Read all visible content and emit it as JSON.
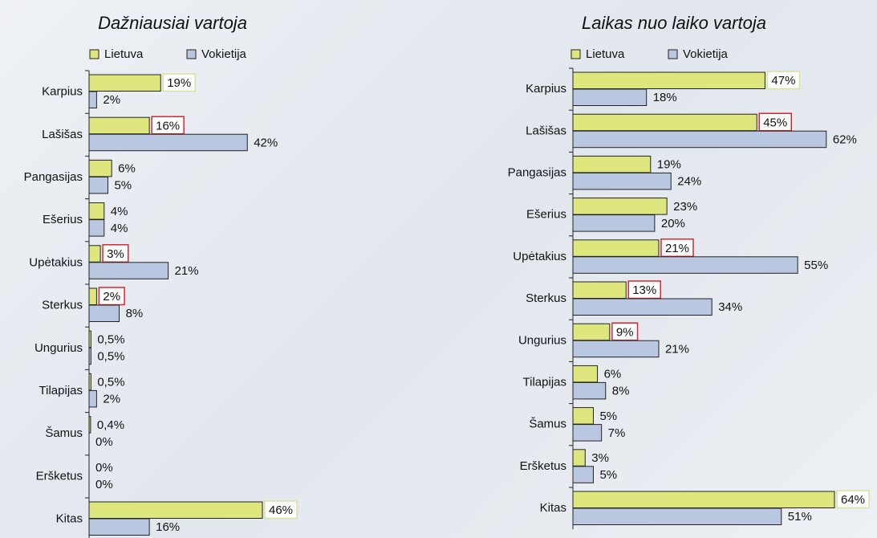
{
  "chart_data": [
    {
      "type": "bar",
      "orientation": "horizontal",
      "title": "Dažniausiai vartoja",
      "categories": [
        "Karpius",
        "Lašišas",
        "Pangasijas",
        "Ešerius",
        "Upėtakius",
        "Sterkus",
        "Ungurius",
        "Tilapijas",
        "Šamus",
        "Eršketus",
        "Kitas"
      ],
      "series": [
        {
          "name": "Lietuva",
          "color": "#dde77d",
          "values": [
            19,
            16,
            6,
            4,
            3,
            2,
            0.5,
            0.5,
            0.4,
            0,
            46
          ],
          "value_labels": [
            "19%",
            "16%",
            "6%",
            "4%",
            "3%",
            "2%",
            "0,5%",
            "0,5%",
            "0,4%",
            "0%",
            "46%"
          ],
          "label_box_colors": [
            "#d6e39a",
            "#d9262c",
            null,
            null,
            "#d9262c",
            "#d9262c",
            null,
            null,
            null,
            null,
            "#d6e39a"
          ]
        },
        {
          "name": "Vokietija",
          "color": "#b9c8e0",
          "values": [
            2,
            42,
            5,
            4,
            21,
            8,
            0.5,
            2,
            0,
            0,
            16
          ],
          "value_labels": [
            "2%",
            "42%",
            "5%",
            "4%",
            "21%",
            "8%",
            "0,5%",
            "2%",
            "0%",
            "0%",
            "16%"
          ]
        }
      ]
    },
    {
      "type": "bar",
      "orientation": "horizontal",
      "title": "Laikas nuo laiko vartoja",
      "categories": [
        "Karpius",
        "Lašišas",
        "Pangasijas",
        "Ešerius",
        "Upėtakius",
        "Sterkus",
        "Ungurius",
        "Tilapijas",
        "Šamus",
        "Eršketus",
        "Kitas"
      ],
      "series": [
        {
          "name": "Lietuva",
          "color": "#dde77d",
          "values": [
            47,
            45,
            19,
            23,
            21,
            13,
            9,
            6,
            5,
            3,
            64
          ],
          "value_labels": [
            "47%",
            "45%",
            "19%",
            "23%",
            "21%",
            "13%",
            "9%",
            "6%",
            "5%",
            "3%",
            "64%"
          ],
          "label_box_colors": [
            "#d6e39a",
            "#d9262c",
            null,
            null,
            "#d9262c",
            "#d9262c",
            "#d9262c",
            null,
            null,
            null,
            "#d6e39a"
          ]
        },
        {
          "name": "Vokietija",
          "color": "#b9c8e0",
          "values": [
            18,
            62,
            24,
            20,
            55,
            34,
            21,
            8,
            7,
            5,
            51
          ],
          "value_labels": [
            "18%",
            "62%",
            "24%",
            "20%",
            "55%",
            "34%",
            "21%",
            "8%",
            "7%",
            "5%",
            "51%"
          ]
        }
      ]
    }
  ]
}
